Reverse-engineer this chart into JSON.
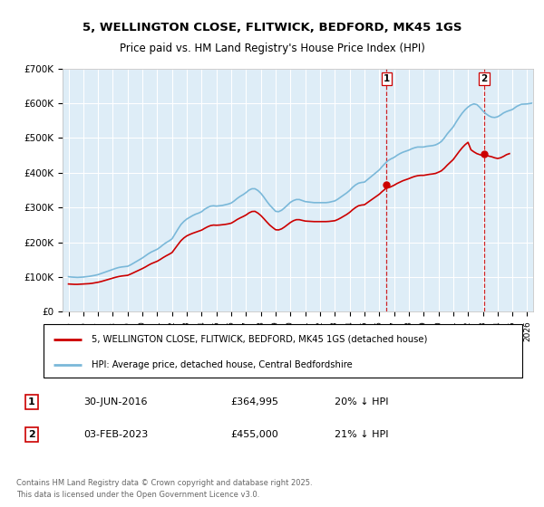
{
  "title_line1": "5, WELLINGTON CLOSE, FLITWICK, BEDFORD, MK45 1GS",
  "title_line2": "Price paid vs. HM Land Registry's House Price Index (HPI)",
  "hpi_color": "#7ab8d9",
  "price_color": "#cc0000",
  "dashed_vline_color": "#cc0000",
  "plot_bg_color": "#deedf7",
  "ylim": [
    0,
    700000
  ],
  "yticks": [
    0,
    100000,
    200000,
    300000,
    400000,
    500000,
    600000,
    700000
  ],
  "ytick_labels": [
    "£0",
    "£100K",
    "£200K",
    "£300K",
    "£400K",
    "£500K",
    "£600K",
    "£700K"
  ],
  "xlim_start": 1994.6,
  "xlim_end": 2026.4,
  "transaction1_x": 2016.5,
  "transaction1_y": 364995,
  "transaction2_x": 2023.1,
  "transaction2_y": 455000,
  "legend_line1": "5, WELLINGTON CLOSE, FLITWICK, BEDFORD, MK45 1GS (detached house)",
  "legend_line2": "HPI: Average price, detached house, Central Bedfordshire",
  "note1_label": "1",
  "note1_date": "30-JUN-2016",
  "note1_price": "£364,995",
  "note1_pct": "20% ↓ HPI",
  "note2_label": "2",
  "note2_date": "03-FEB-2023",
  "note2_price": "£455,000",
  "note2_pct": "21% ↓ HPI",
  "footer": "Contains HM Land Registry data © Crown copyright and database right 2025.\nThis data is licensed under the Open Government Licence v3.0.",
  "hpi_data": [
    [
      1995.0,
      101000
    ],
    [
      1995.2,
      100000
    ],
    [
      1995.4,
      99500
    ],
    [
      1995.6,
      99000
    ],
    [
      1995.8,
      99500
    ],
    [
      1996.0,
      100000
    ],
    [
      1996.2,
      101000
    ],
    [
      1996.4,
      102000
    ],
    [
      1996.6,
      103500
    ],
    [
      1996.8,
      105000
    ],
    [
      1997.0,
      107000
    ],
    [
      1997.2,
      110000
    ],
    [
      1997.4,
      113000
    ],
    [
      1997.6,
      116000
    ],
    [
      1997.8,
      119000
    ],
    [
      1998.0,
      122000
    ],
    [
      1998.2,
      125000
    ],
    [
      1998.4,
      127500
    ],
    [
      1998.6,
      129000
    ],
    [
      1998.8,
      130000
    ],
    [
      1999.0,
      131000
    ],
    [
      1999.2,
      135000
    ],
    [
      1999.4,
      140000
    ],
    [
      1999.6,
      145000
    ],
    [
      1999.8,
      150000
    ],
    [
      2000.0,
      155000
    ],
    [
      2000.2,
      161000
    ],
    [
      2000.4,
      167000
    ],
    [
      2000.6,
      172000
    ],
    [
      2000.8,
      176000
    ],
    [
      2001.0,
      180000
    ],
    [
      2001.2,
      186000
    ],
    [
      2001.4,
      193000
    ],
    [
      2001.6,
      199000
    ],
    [
      2001.8,
      204000
    ],
    [
      2002.0,
      210000
    ],
    [
      2002.2,
      224000
    ],
    [
      2002.4,
      238000
    ],
    [
      2002.6,
      251000
    ],
    [
      2002.8,
      260000
    ],
    [
      2003.0,
      267000
    ],
    [
      2003.2,
      272000
    ],
    [
      2003.4,
      277000
    ],
    [
      2003.6,
      281000
    ],
    [
      2003.8,
      284000
    ],
    [
      2004.0,
      288000
    ],
    [
      2004.2,
      295000
    ],
    [
      2004.4,
      300000
    ],
    [
      2004.6,
      304000
    ],
    [
      2004.8,
      305000
    ],
    [
      2005.0,
      304000
    ],
    [
      2005.2,
      305000
    ],
    [
      2005.4,
      306000
    ],
    [
      2005.6,
      308000
    ],
    [
      2005.8,
      310000
    ],
    [
      2006.0,
      313000
    ],
    [
      2006.2,
      319000
    ],
    [
      2006.4,
      326000
    ],
    [
      2006.6,
      332000
    ],
    [
      2006.8,
      337000
    ],
    [
      2007.0,
      343000
    ],
    [
      2007.2,
      350000
    ],
    [
      2007.4,
      354000
    ],
    [
      2007.6,
      354000
    ],
    [
      2007.8,
      349000
    ],
    [
      2008.0,
      341000
    ],
    [
      2008.2,
      330000
    ],
    [
      2008.4,
      318000
    ],
    [
      2008.6,
      307000
    ],
    [
      2008.8,
      298000
    ],
    [
      2009.0,
      289000
    ],
    [
      2009.2,
      288000
    ],
    [
      2009.4,
      292000
    ],
    [
      2009.6,
      299000
    ],
    [
      2009.8,
      307000
    ],
    [
      2010.0,
      315000
    ],
    [
      2010.2,
      320000
    ],
    [
      2010.4,
      323000
    ],
    [
      2010.6,
      323000
    ],
    [
      2010.8,
      320000
    ],
    [
      2011.0,
      317000
    ],
    [
      2011.2,
      316000
    ],
    [
      2011.4,
      315000
    ],
    [
      2011.6,
      314000
    ],
    [
      2011.8,
      314000
    ],
    [
      2012.0,
      314000
    ],
    [
      2012.2,
      314000
    ],
    [
      2012.4,
      314000
    ],
    [
      2012.6,
      315000
    ],
    [
      2012.8,
      317000
    ],
    [
      2013.0,
      319000
    ],
    [
      2013.2,
      324000
    ],
    [
      2013.4,
      330000
    ],
    [
      2013.6,
      336000
    ],
    [
      2013.8,
      342000
    ],
    [
      2014.0,
      349000
    ],
    [
      2014.2,
      358000
    ],
    [
      2014.4,
      365000
    ],
    [
      2014.6,
      370000
    ],
    [
      2014.8,
      372000
    ],
    [
      2015.0,
      373000
    ],
    [
      2015.2,
      380000
    ],
    [
      2015.4,
      387000
    ],
    [
      2015.6,
      394000
    ],
    [
      2015.8,
      401000
    ],
    [
      2016.0,
      408000
    ],
    [
      2016.2,
      418000
    ],
    [
      2016.4,
      427000
    ],
    [
      2016.6,
      435000
    ],
    [
      2016.8,
      440000
    ],
    [
      2017.0,
      444000
    ],
    [
      2017.2,
      450000
    ],
    [
      2017.4,
      455000
    ],
    [
      2017.6,
      459000
    ],
    [
      2017.8,
      462000
    ],
    [
      2018.0,
      465000
    ],
    [
      2018.2,
      469000
    ],
    [
      2018.4,
      472000
    ],
    [
      2018.6,
      474000
    ],
    [
      2018.8,
      474000
    ],
    [
      2019.0,
      474000
    ],
    [
      2019.2,
      476000
    ],
    [
      2019.4,
      477000
    ],
    [
      2019.6,
      478000
    ],
    [
      2019.8,
      480000
    ],
    [
      2020.0,
      484000
    ],
    [
      2020.2,
      490000
    ],
    [
      2020.4,
      500000
    ],
    [
      2020.6,
      512000
    ],
    [
      2020.8,
      522000
    ],
    [
      2021.0,
      532000
    ],
    [
      2021.2,
      546000
    ],
    [
      2021.4,
      559000
    ],
    [
      2021.6,
      571000
    ],
    [
      2021.8,
      581000
    ],
    [
      2022.0,
      589000
    ],
    [
      2022.2,
      595000
    ],
    [
      2022.4,
      598000
    ],
    [
      2022.6,
      596000
    ],
    [
      2022.8,
      588000
    ],
    [
      2023.0,
      578000
    ],
    [
      2023.2,
      570000
    ],
    [
      2023.4,
      564000
    ],
    [
      2023.6,
      560000
    ],
    [
      2023.8,
      559000
    ],
    [
      2024.0,
      561000
    ],
    [
      2024.2,
      566000
    ],
    [
      2024.4,
      572000
    ],
    [
      2024.6,
      576000
    ],
    [
      2024.8,
      579000
    ],
    [
      2025.0,
      582000
    ],
    [
      2025.3,
      591000
    ],
    [
      2025.6,
      597000
    ],
    [
      2026.0,
      598000
    ],
    [
      2026.3,
      600000
    ]
  ],
  "price_data": [
    [
      1995.0,
      80000
    ],
    [
      1995.2,
      79500
    ],
    [
      1995.4,
      79000
    ],
    [
      1995.6,
      79000
    ],
    [
      1995.8,
      79500
    ],
    [
      1996.0,
      80000
    ],
    [
      1996.2,
      80500
    ],
    [
      1996.4,
      81000
    ],
    [
      1996.6,
      82000
    ],
    [
      1996.8,
      83500
    ],
    [
      1997.0,
      85000
    ],
    [
      1997.2,
      87000
    ],
    [
      1997.4,
      89500
    ],
    [
      1997.6,
      92000
    ],
    [
      1997.8,
      94500
    ],
    [
      1998.0,
      97000
    ],
    [
      1998.2,
      99500
    ],
    [
      1998.4,
      101500
    ],
    [
      1998.6,
      103000
    ],
    [
      1998.8,
      104000
    ],
    [
      1999.0,
      105000
    ],
    [
      1999.2,
      108500
    ],
    [
      1999.4,
      112500
    ],
    [
      1999.6,
      116500
    ],
    [
      1999.8,
      120500
    ],
    [
      2000.0,
      124500
    ],
    [
      2000.2,
      129000
    ],
    [
      2000.4,
      134000
    ],
    [
      2000.6,
      138500
    ],
    [
      2000.8,
      142000
    ],
    [
      2001.0,
      145500
    ],
    [
      2001.2,
      150500
    ],
    [
      2001.4,
      156000
    ],
    [
      2001.6,
      161000
    ],
    [
      2001.8,
      165500
    ],
    [
      2002.0,
      170500
    ],
    [
      2002.2,
      182000
    ],
    [
      2002.4,
      193500
    ],
    [
      2002.6,
      204500
    ],
    [
      2002.8,
      212500
    ],
    [
      2003.0,
      218500
    ],
    [
      2003.2,
      222500
    ],
    [
      2003.4,
      226000
    ],
    [
      2003.6,
      229000
    ],
    [
      2003.8,
      232000
    ],
    [
      2004.0,
      235000
    ],
    [
      2004.2,
      240000
    ],
    [
      2004.4,
      244500
    ],
    [
      2004.6,
      248000
    ],
    [
      2004.8,
      249500
    ],
    [
      2005.0,
      249000
    ],
    [
      2005.2,
      249500
    ],
    [
      2005.4,
      250500
    ],
    [
      2005.6,
      251500
    ],
    [
      2005.8,
      253000
    ],
    [
      2006.0,
      255000
    ],
    [
      2006.2,
      260000
    ],
    [
      2006.4,
      265500
    ],
    [
      2006.6,
      270000
    ],
    [
      2006.8,
      274000
    ],
    [
      2007.0,
      278500
    ],
    [
      2007.2,
      284500
    ],
    [
      2007.4,
      288500
    ],
    [
      2007.6,
      289000
    ],
    [
      2007.8,
      284000
    ],
    [
      2008.0,
      277000
    ],
    [
      2008.2,
      268000
    ],
    [
      2008.4,
      258500
    ],
    [
      2008.6,
      249500
    ],
    [
      2008.8,
      242500
    ],
    [
      2009.0,
      236000
    ],
    [
      2009.2,
      235500
    ],
    [
      2009.4,
      238500
    ],
    [
      2009.6,
      244000
    ],
    [
      2009.8,
      250500
    ],
    [
      2010.0,
      257000
    ],
    [
      2010.2,
      262000
    ],
    [
      2010.4,
      265000
    ],
    [
      2010.6,
      265000
    ],
    [
      2010.8,
      263000
    ],
    [
      2011.0,
      261000
    ],
    [
      2011.2,
      260500
    ],
    [
      2011.4,
      260000
    ],
    [
      2011.6,
      259500
    ],
    [
      2011.8,
      259500
    ],
    [
      2012.0,
      259500
    ],
    [
      2012.2,
      259500
    ],
    [
      2012.4,
      259500
    ],
    [
      2012.6,
      260000
    ],
    [
      2012.8,
      261000
    ],
    [
      2013.0,
      262000
    ],
    [
      2013.2,
      265500
    ],
    [
      2013.4,
      270000
    ],
    [
      2013.6,
      275000
    ],
    [
      2013.8,
      280000
    ],
    [
      2014.0,
      286000
    ],
    [
      2014.2,
      293500
    ],
    [
      2014.4,
      300000
    ],
    [
      2014.6,
      305000
    ],
    [
      2014.8,
      307000
    ],
    [
      2015.0,
      308000
    ],
    [
      2015.2,
      314000
    ],
    [
      2015.4,
      320000
    ],
    [
      2015.6,
      326000
    ],
    [
      2015.8,
      332000
    ],
    [
      2016.0,
      338000
    ],
    [
      2016.2,
      346000
    ],
    [
      2016.4,
      353000
    ],
    [
      2016.5,
      364995
    ],
    [
      2016.7,
      358000
    ],
    [
      2016.9,
      362000
    ],
    [
      2017.0,
      364000
    ],
    [
      2017.2,
      369000
    ],
    [
      2017.4,
      373000
    ],
    [
      2017.6,
      377000
    ],
    [
      2017.8,
      380000
    ],
    [
      2018.0,
      383000
    ],
    [
      2018.2,
      386500
    ],
    [
      2018.4,
      389500
    ],
    [
      2018.6,
      391500
    ],
    [
      2018.8,
      392500
    ],
    [
      2019.0,
      392500
    ],
    [
      2019.2,
      394000
    ],
    [
      2019.4,
      395500
    ],
    [
      2019.6,
      396500
    ],
    [
      2019.8,
      398000
    ],
    [
      2020.0,
      401500
    ],
    [
      2020.2,
      405500
    ],
    [
      2020.4,
      413000
    ],
    [
      2020.6,
      422000
    ],
    [
      2020.8,
      430000
    ],
    [
      2021.0,
      438000
    ],
    [
      2021.2,
      449500
    ],
    [
      2021.4,
      461000
    ],
    [
      2021.6,
      471500
    ],
    [
      2021.8,
      480500
    ],
    [
      2022.0,
      487500
    ],
    [
      2022.2,
      466000
    ],
    [
      2022.4,
      460000
    ],
    [
      2022.6,
      455000
    ],
    [
      2022.8,
      452000
    ],
    [
      2023.0,
      449000
    ],
    [
      2023.1,
      455000
    ],
    [
      2023.2,
      450000
    ],
    [
      2023.4,
      448000
    ],
    [
      2023.6,
      446000
    ],
    [
      2023.8,
      443000
    ],
    [
      2024.0,
      441000
    ],
    [
      2024.2,
      443000
    ],
    [
      2024.4,
      447000
    ],
    [
      2024.6,
      452000
    ],
    [
      2024.8,
      455000
    ]
  ]
}
